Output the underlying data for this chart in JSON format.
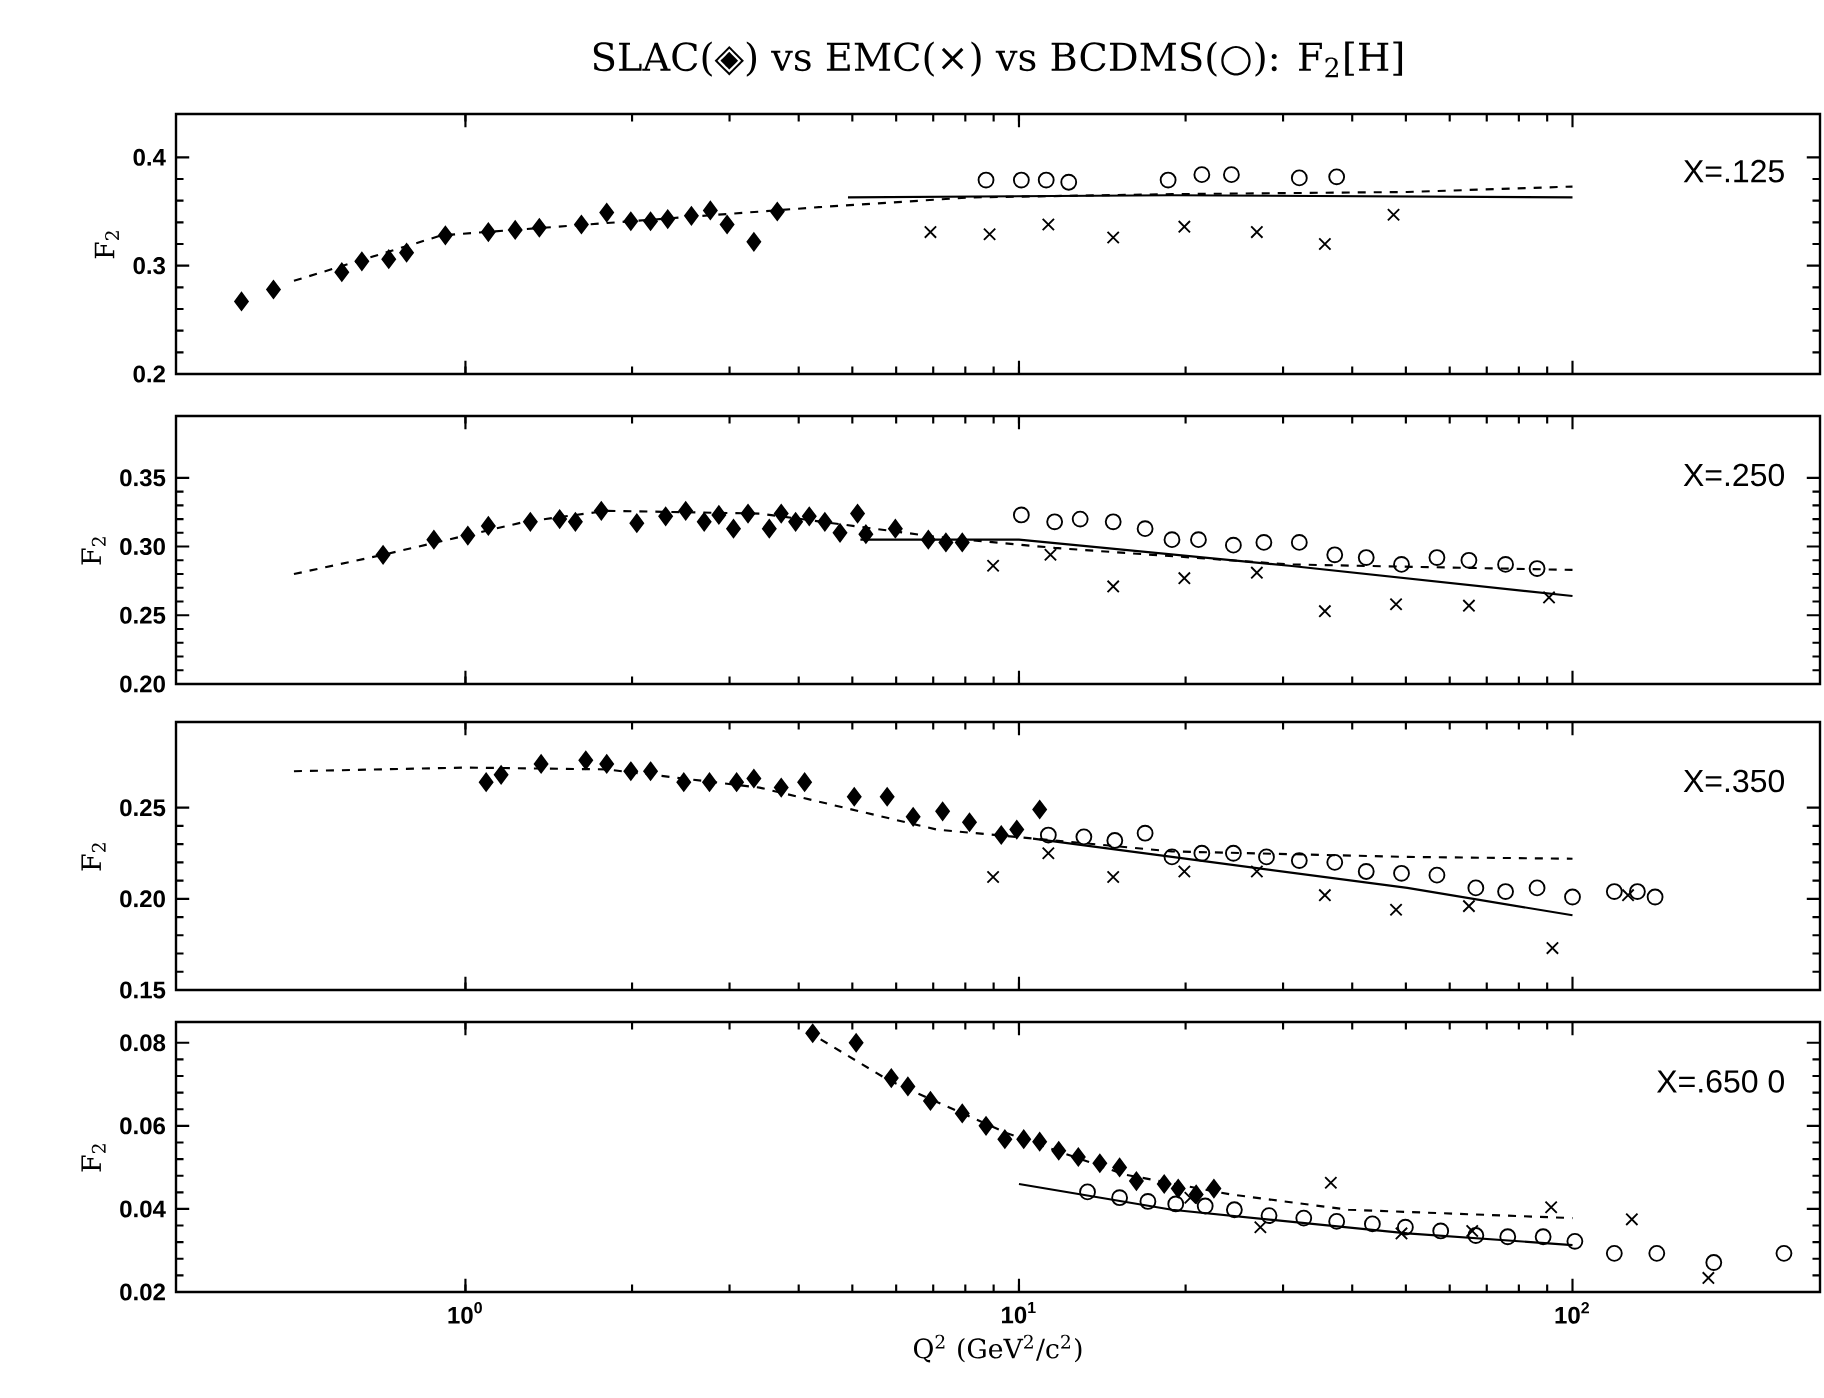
{
  "chart_data": [
    {
      "type": "scatter",
      "title": "SLAC(◈) vs EMC(×) vs BCDMS(○): F$_{2}$[H]",
      "ylabel": "F$_{2}$",
      "log": "x",
      "xlim": [
        0.3,
        280
      ],
      "ylim": [
        0.2,
        0.44
      ],
      "xticks": [
        {
          "value": 1,
          "label": null
        },
        {
          "value": 10,
          "label": null
        },
        {
          "value": 100,
          "label": null
        }
      ],
      "yticks": [
        0.2,
        0.3,
        0.4
      ],
      "tick_labels": "y",
      "annotations": [
        "X=.125"
      ],
      "series": [
        {
          "type": "scatter",
          "marker": "diamond",
          "color": "#000000",
          "x": [
            0.394,
            0.45,
            0.598,
            0.65,
            0.727,
            0.783,
            0.92,
            1.1,
            1.23,
            1.36,
            1.62,
            1.8,
            1.99,
            2.16,
            2.32,
            2.56,
            2.77,
            2.97,
            3.32,
            3.66
          ],
          "values": [
            0.267,
            0.278,
            0.294,
            0.304,
            0.306,
            0.312,
            0.328,
            0.331,
            0.333,
            0.335,
            0.338,
            0.349,
            0.341,
            0.341,
            0.343,
            0.346,
            0.351,
            0.338,
            0.322,
            0.35
          ]
        },
        {
          "type": "scatter",
          "marker": "cross",
          "color": "#000000",
          "x": [
            6.92,
            8.85,
            11.3,
            14.8,
            19.9,
            26.9,
            35.7,
            47.5
          ],
          "values": [
            0.331,
            0.329,
            0.338,
            0.326,
            0.336,
            0.331,
            0.32,
            0.347
          ]
        },
        {
          "type": "scatter",
          "marker": "circle",
          "color": "#000000",
          "x": [
            8.72,
            10.1,
            11.2,
            12.3,
            18.6,
            21.4,
            24.2,
            32.1,
            37.5
          ],
          "values": [
            0.379,
            0.379,
            0.379,
            0.377,
            0.379,
            0.384,
            0.384,
            0.381,
            0.382
          ]
        },
        {
          "type": "line",
          "line_style": "dashed",
          "color": "#000000",
          "x": [
            0.49,
            0.906,
            1.99,
            4.35,
            8.2,
            18.9,
            50.3,
            100
          ],
          "values": [
            0.286,
            0.328,
            0.341,
            0.354,
            0.363,
            0.366,
            0.368,
            0.373
          ]
        },
        {
          "type": "line",
          "line_style": "solid",
          "color": "#000000",
          "x": [
            4.91,
            18.9,
            100
          ],
          "values": [
            0.363,
            0.365,
            0.363
          ]
        }
      ]
    },
    {
      "type": "scatter",
      "ylabel": "F$_{2}$",
      "log": "x",
      "xlim": [
        0.3,
        280
      ],
      "ylim": [
        0.2,
        0.395
      ],
      "xticks": [
        {
          "value": 1,
          "label": null
        },
        {
          "value": 10,
          "label": null
        },
        {
          "value": 100,
          "label": null
        }
      ],
      "yticks": [
        {
          "value": 0.2,
          "label": "0.20"
        },
        {
          "value": 0.25,
          "label": "0.25"
        },
        {
          "value": 0.3,
          "label": "0.30"
        },
        {
          "value": 0.35,
          "label": "0.35"
        }
      ],
      "tick_labels": "y",
      "annotations": [
        "X=.250"
      ],
      "series": [
        {
          "type": "scatter",
          "marker": "diamond",
          "color": "#000000",
          "x": [
            0.71,
            0.877,
            1.01,
            1.1,
            1.31,
            1.48,
            1.58,
            1.76,
            2.04,
            2.3,
            2.5,
            2.7,
            2.87,
            3.05,
            3.24,
            3.54,
            3.72,
            3.95,
            4.18,
            4.46,
            4.75,
            5.11,
            5.29,
            5.98,
            6.86,
            7.38,
            7.9
          ],
          "values": [
            0.294,
            0.305,
            0.308,
            0.315,
            0.318,
            0.32,
            0.318,
            0.326,
            0.317,
            0.322,
            0.326,
            0.318,
            0.323,
            0.313,
            0.324,
            0.313,
            0.324,
            0.318,
            0.322,
            0.318,
            0.31,
            0.324,
            0.309,
            0.313,
            0.305,
            0.303,
            0.303
          ]
        },
        {
          "type": "scatter",
          "marker": "cross",
          "color": "#000000",
          "x": [
            8.98,
            11.4,
            14.8,
            19.9,
            26.9,
            35.7,
            48.0,
            65.0,
            90.7
          ],
          "values": [
            0.286,
            0.294,
            0.271,
            0.277,
            0.281,
            0.253,
            0.258,
            0.257,
            0.263
          ]
        },
        {
          "type": "scatter",
          "marker": "circle",
          "color": "#000000",
          "x": [
            10.1,
            11.6,
            12.9,
            14.8,
            16.9,
            18.9,
            21.1,
            24.4,
            27.7,
            32.1,
            37.2,
            42.4,
            49.1,
            56.9,
            65.0,
            75.7,
            86.3
          ],
          "values": [
            0.323,
            0.318,
            0.32,
            0.318,
            0.313,
            0.305,
            0.305,
            0.301,
            0.303,
            0.303,
            0.294,
            0.292,
            0.287,
            0.292,
            0.29,
            0.287,
            0.284
          ]
        },
        {
          "type": "line",
          "line_style": "dashed",
          "color": "#000000",
          "x": [
            0.49,
            0.71,
            1.28,
            1.8,
            3.4,
            7.1,
            11.6,
            30.8,
            100
          ],
          "values": [
            0.28,
            0.294,
            0.318,
            0.326,
            0.324,
            0.307,
            0.299,
            0.287,
            0.283
          ]
        },
        {
          "type": "line",
          "line_style": "solid",
          "color": "#000000",
          "x": [
            5.17,
            10.0,
            30.8,
            100
          ],
          "values": [
            0.305,
            0.305,
            0.286,
            0.264
          ]
        }
      ]
    },
    {
      "type": "scatter",
      "ylabel": "F$_{2}$",
      "log": "x",
      "xlim": [
        0.3,
        280
      ],
      "ylim": [
        0.15,
        0.297
      ],
      "xticks": [
        {
          "value": 1,
          "label": null
        },
        {
          "value": 10,
          "label": null
        },
        {
          "value": 100,
          "label": null
        }
      ],
      "yticks": [
        {
          "value": 0.15,
          "label": "0.15"
        },
        {
          "value": 0.2,
          "label": "0.20"
        },
        {
          "value": 0.25,
          "label": "0.25"
        }
      ],
      "tick_labels": "y",
      "annotations": [
        "X=.350"
      ],
      "series": [
        {
          "type": "scatter",
          "marker": "diamond",
          "color": "#000000",
          "x": [
            1.09,
            1.16,
            1.37,
            1.65,
            1.8,
            1.99,
            2.16,
            2.48,
            2.76,
            3.09,
            3.32,
            3.72,
            4.1,
            5.04,
            5.78,
            6.44,
            7.28,
            8.14,
            9.29,
            9.91,
            10.9
          ],
          "values": [
            0.264,
            0.268,
            0.274,
            0.276,
            0.274,
            0.27,
            0.27,
            0.264,
            0.264,
            0.264,
            0.266,
            0.261,
            0.264,
            0.256,
            0.256,
            0.245,
            0.248,
            0.242,
            0.235,
            0.238,
            0.249
          ]
        },
        {
          "type": "scatter",
          "marker": "cross",
          "color": "#000000",
          "x": [
            8.98,
            11.3,
            14.8,
            19.9,
            26.9,
            35.7,
            48.0,
            65.0,
            92.0,
            126
          ],
          "values": [
            0.212,
            0.225,
            0.212,
            0.215,
            0.215,
            0.202,
            0.194,
            0.196,
            0.173,
            0.202
          ]
        },
        {
          "type": "scatter",
          "marker": "circle",
          "color": "#000000",
          "x": [
            11.3,
            13.1,
            14.9,
            16.9,
            18.9,
            21.4,
            24.4,
            28.0,
            32.1,
            37.2,
            42.4,
            49.1,
            56.9,
            66.9,
            75.7,
            86.3,
            100,
            119,
            131,
            141
          ],
          "values": [
            0.235,
            0.234,
            0.232,
            0.236,
            0.223,
            0.225,
            0.225,
            0.223,
            0.221,
            0.22,
            0.215,
            0.214,
            0.213,
            0.206,
            0.204,
            0.206,
            0.201,
            0.204,
            0.204,
            0.201
          ]
        },
        {
          "type": "line",
          "line_style": "dashed",
          "color": "#000000",
          "x": [
            0.49,
            1.0,
            1.8,
            3.4,
            7.1,
            11.6,
            18.9,
            50.3,
            100
          ],
          "values": [
            0.27,
            0.272,
            0.271,
            0.261,
            0.238,
            0.232,
            0.226,
            0.223,
            0.222
          ]
        },
        {
          "type": "line",
          "line_style": "solid",
          "color": "#000000",
          "x": [
            10.6,
            18.9,
            50.3,
            100
          ],
          "values": [
            0.233,
            0.223,
            0.206,
            0.191
          ]
        }
      ]
    },
    {
      "type": "scatter",
      "ylabel": "F$_{2}$",
      "xlabel": "Q$^{2}$ (GeV$^{2}$/c$^{2}$)",
      "log": "x",
      "xlim": [
        0.3,
        280
      ],
      "ylim": [
        0.02,
        0.085
      ],
      "xticks": [
        {
          "value": 1,
          "label": "10$^{0}$"
        },
        {
          "value": 10,
          "label": "10$^{1}$"
        },
        {
          "value": 100,
          "label": "10$^{2}$"
        }
      ],
      "yticks": [
        0.02,
        0.04,
        0.06,
        0.08
      ],
      "annotations": [
        "X=.650  0"
      ],
      "series": [
        {
          "type": "scatter",
          "marker": "diamond",
          "color": "#000000",
          "x": [
            4.24,
            5.08,
            5.88,
            6.3,
            6.92,
            7.9,
            8.72,
            9.43,
            10.2,
            10.9,
            11.8,
            12.8,
            14.0,
            15.2,
            16.3,
            18.3,
            19.4,
            20.9,
            22.5
          ],
          "values": [
            0.0823,
            0.08,
            0.0715,
            0.0695,
            0.066,
            0.063,
            0.06,
            0.0568,
            0.0568,
            0.0562,
            0.054,
            0.0525,
            0.051,
            0.05,
            0.0467,
            0.046,
            0.0449,
            0.0435,
            0.0449
          ]
        },
        {
          "type": "scatter",
          "marker": "cross",
          "color": "#000000",
          "x": [
            20.4,
            27.3,
            36.6,
            49.1,
            65.9,
            91.5,
            128,
            176
          ],
          "values": [
            0.0427,
            0.0356,
            0.0463,
            0.0341,
            0.0347,
            0.0404,
            0.0375,
            0.0234
          ]
        },
        {
          "type": "scatter",
          "marker": "circle",
          "color": "#000000",
          "x": [
            13.3,
            15.2,
            17.1,
            19.2,
            21.7,
            24.5,
            28.3,
            32.7,
            37.5,
            43.5,
            49.9,
            57.8,
            66.9,
            76.4,
            88.5,
            101,
            119,
            142,
            180,
            241
          ],
          "values": [
            0.0441,
            0.0427,
            0.0418,
            0.0412,
            0.0407,
            0.0398,
            0.0384,
            0.0378,
            0.037,
            0.0364,
            0.0356,
            0.0347,
            0.0336,
            0.0333,
            0.0333,
            0.0322,
            0.0293,
            0.0293,
            0.0271,
            0.0293
          ]
        },
        {
          "type": "line",
          "line_style": "dashed",
          "color": "#000000",
          "x": [
            4.14,
            5.83,
            9.52,
            15.5,
            24.1,
            39.4,
            100
          ],
          "values": [
            0.0828,
            0.0709,
            0.0582,
            0.0483,
            0.0435,
            0.0398,
            0.0378
          ]
        },
        {
          "type": "line",
          "line_style": "solid",
          "color": "#000000",
          "x": [
            10.0,
            18.9,
            50.3,
            100
          ],
          "values": [
            0.046,
            0.0398,
            0.0341,
            0.0313
          ]
        }
      ]
    }
  ]
}
